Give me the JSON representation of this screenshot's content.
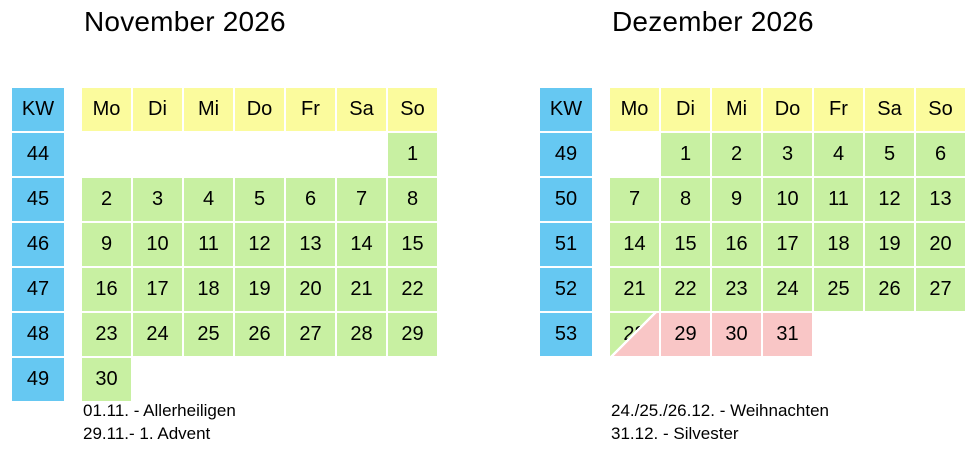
{
  "colors": {
    "background": "#ffffff",
    "text": "#000000",
    "kw_column": "#66c8f2",
    "day_header": "#fbfb9d",
    "workday": "#c8f0a2",
    "holiday": "#f9c6c6"
  },
  "kw_label": "KW",
  "day_headers": [
    "Mo",
    "Di",
    "Mi",
    "Do",
    "Fr",
    "Sa",
    "So"
  ],
  "months": [
    {
      "title": "November 2026",
      "weeks": [
        {
          "kw": "44",
          "days": [
            {
              "value": "",
              "type": "empty"
            },
            {
              "value": "",
              "type": "empty"
            },
            {
              "value": "",
              "type": "empty"
            },
            {
              "value": "",
              "type": "empty"
            },
            {
              "value": "",
              "type": "empty"
            },
            {
              "value": "",
              "type": "empty"
            },
            {
              "value": "1",
              "type": "workday"
            }
          ]
        },
        {
          "kw": "45",
          "days": [
            {
              "value": "2",
              "type": "workday"
            },
            {
              "value": "3",
              "type": "workday"
            },
            {
              "value": "4",
              "type": "workday"
            },
            {
              "value": "5",
              "type": "workday"
            },
            {
              "value": "6",
              "type": "workday"
            },
            {
              "value": "7",
              "type": "workday"
            },
            {
              "value": "8",
              "type": "workday"
            }
          ]
        },
        {
          "kw": "46",
          "days": [
            {
              "value": "9",
              "type": "workday"
            },
            {
              "value": "10",
              "type": "workday"
            },
            {
              "value": "11",
              "type": "workday"
            },
            {
              "value": "12",
              "type": "workday"
            },
            {
              "value": "13",
              "type": "workday"
            },
            {
              "value": "14",
              "type": "workday"
            },
            {
              "value": "15",
              "type": "workday"
            }
          ]
        },
        {
          "kw": "47",
          "days": [
            {
              "value": "16",
              "type": "workday"
            },
            {
              "value": "17",
              "type": "workday"
            },
            {
              "value": "18",
              "type": "workday"
            },
            {
              "value": "19",
              "type": "workday"
            },
            {
              "value": "20",
              "type": "workday"
            },
            {
              "value": "21",
              "type": "workday"
            },
            {
              "value": "22",
              "type": "workday"
            }
          ]
        },
        {
          "kw": "48",
          "days": [
            {
              "value": "23",
              "type": "workday"
            },
            {
              "value": "24",
              "type": "workday"
            },
            {
              "value": "25",
              "type": "workday"
            },
            {
              "value": "26",
              "type": "workday"
            },
            {
              "value": "27",
              "type": "workday"
            },
            {
              "value": "28",
              "type": "workday"
            },
            {
              "value": "29",
              "type": "workday"
            }
          ]
        },
        {
          "kw": "49",
          "days": [
            {
              "value": "30",
              "type": "workday"
            },
            {
              "value": "",
              "type": "empty"
            },
            {
              "value": "",
              "type": "empty"
            },
            {
              "value": "",
              "type": "empty"
            },
            {
              "value": "",
              "type": "empty"
            },
            {
              "value": "",
              "type": "empty"
            },
            {
              "value": "",
              "type": "empty"
            }
          ]
        }
      ],
      "notes": [
        "01.11. - Allerheiligen",
        "29.11.- 1. Advent"
      ]
    },
    {
      "title": "Dezember 2026",
      "weeks": [
        {
          "kw": "49",
          "days": [
            {
              "value": "",
              "type": "empty"
            },
            {
              "value": "1",
              "type": "workday"
            },
            {
              "value": "2",
              "type": "workday"
            },
            {
              "value": "3",
              "type": "workday"
            },
            {
              "value": "4",
              "type": "workday"
            },
            {
              "value": "5",
              "type": "workday"
            },
            {
              "value": "6",
              "type": "workday"
            }
          ]
        },
        {
          "kw": "50",
          "days": [
            {
              "value": "7",
              "type": "workday"
            },
            {
              "value": "8",
              "type": "workday"
            },
            {
              "value": "9",
              "type": "workday"
            },
            {
              "value": "10",
              "type": "workday"
            },
            {
              "value": "11",
              "type": "workday"
            },
            {
              "value": "12",
              "type": "workday"
            },
            {
              "value": "13",
              "type": "workday"
            }
          ]
        },
        {
          "kw": "51",
          "days": [
            {
              "value": "14",
              "type": "workday"
            },
            {
              "value": "15",
              "type": "workday"
            },
            {
              "value": "16",
              "type": "workday"
            },
            {
              "value": "17",
              "type": "workday"
            },
            {
              "value": "18",
              "type": "workday"
            },
            {
              "value": "19",
              "type": "workday"
            },
            {
              "value": "20",
              "type": "workday"
            }
          ]
        },
        {
          "kw": "52",
          "days": [
            {
              "value": "21",
              "type": "workday"
            },
            {
              "value": "22",
              "type": "workday"
            },
            {
              "value": "23",
              "type": "workday"
            },
            {
              "value": "24",
              "type": "workday"
            },
            {
              "value": "25",
              "type": "workday"
            },
            {
              "value": "26",
              "type": "workday"
            },
            {
              "value": "27",
              "type": "workday"
            }
          ]
        },
        {
          "kw": "53",
          "days": [
            {
              "value": "28",
              "type": "split"
            },
            {
              "value": "29",
              "type": "holiday"
            },
            {
              "value": "30",
              "type": "holiday"
            },
            {
              "value": "31",
              "type": "holiday"
            },
            {
              "value": "",
              "type": "empty"
            },
            {
              "value": "",
              "type": "empty"
            },
            {
              "value": "",
              "type": "empty"
            }
          ]
        }
      ],
      "notes": [
        "24./25./26.12. - Weihnachten",
        "31.12. - Silvester"
      ]
    }
  ]
}
